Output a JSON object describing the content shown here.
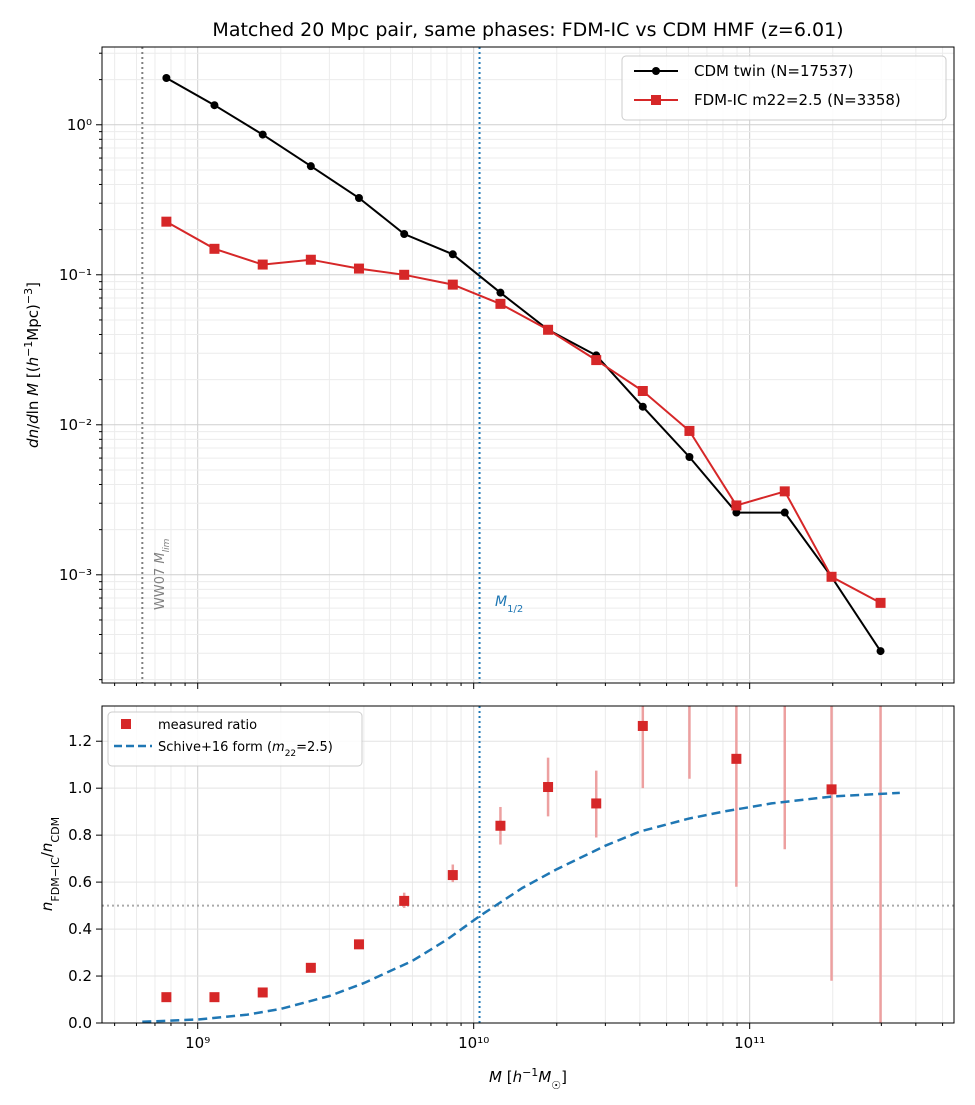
{
  "chart_data": [
    {
      "type": "line",
      "title": "Matched 20 Mpc pair, same phases: FDM-IC vs CDM HMF (z=6.01)",
      "xlabel": "",
      "ylabel": "dn/dln M [(h⁻¹Mpc)⁻³]",
      "xscale": "log",
      "yscale": "log",
      "xlim": [
        450000000.0,
        550000000000.0
      ],
      "ylim": [
        0.00019,
        3.3
      ],
      "grid": true,
      "legend_position": "top-right",
      "yticks": [
        "10⁻³",
        "10⁻²",
        "10⁻¹",
        "10⁰"
      ],
      "x": [
        770000000.0,
        1150000000.0,
        1720000000.0,
        2570000000.0,
        3840000000.0,
        5600000000.0,
        8400000000.0,
        12500000000.0,
        18600000000.0,
        27800000000.0,
        41000000000.0,
        60500000000.0,
        89500000000.0,
        134000000000.0,
        198000000000.0,
        298000000000.0
      ],
      "series": [
        {
          "name": "CDM twin (N=17537)",
          "color": "#000000",
          "marker": "circle",
          "values": [
            2.05,
            1.35,
            0.86,
            0.53,
            0.325,
            0.187,
            0.137,
            0.076,
            0.043,
            0.029,
            0.0132,
            0.0061,
            0.0026,
            0.0026,
            0.00097,
            0.00031
          ]
        },
        {
          "name": "FDM-IC m22=2.5 (N=3358)",
          "color": "#d62728",
          "marker": "square",
          "values": [
            0.226,
            0.149,
            0.117,
            0.126,
            0.11,
            0.1,
            0.086,
            0.064,
            0.043,
            0.027,
            0.0168,
            0.0091,
            0.0029,
            0.0036,
            0.00097,
            0.00065
          ]
        }
      ],
      "annotations": [
        {
          "text": "WW07 M_lim",
          "x": 630000000.0,
          "color": "#808080"
        },
        {
          "text": "M_1/2",
          "x": 10500000000.0,
          "color": "#1f77b4"
        }
      ]
    },
    {
      "type": "scatter",
      "xlabel": "M [h⁻¹M☉]",
      "ylabel": "n_FDM−IC / n_CDM",
      "xscale": "log",
      "yscale": "linear",
      "xlim": [
        450000000.0,
        550000000000.0
      ],
      "ylim": [
        0.0,
        1.35
      ],
      "grid": true,
      "legend_position": "top-left",
      "xticks": [
        "10⁹",
        "10¹⁰",
        "10¹¹"
      ],
      "yticks": [
        "0.0",
        "0.2",
        "0.4",
        "0.6",
        "0.8",
        "1.0",
        "1.2"
      ],
      "series": [
        {
          "name": "measured ratio",
          "color": "#d62728",
          "marker": "square",
          "x": [
            770000000.0,
            1150000000.0,
            1720000000.0,
            2570000000.0,
            3840000000.0,
            5600000000.0,
            8400000000.0,
            12500000000.0,
            18600000000.0,
            27800000000.0,
            41000000000.0,
            60500000000.0,
            89500000000.0,
            134000000000.0,
            198000000000.0,
            298000000000.0
          ],
          "values": [
            0.11,
            0.11,
            0.13,
            0.235,
            0.335,
            0.52,
            0.63,
            0.84,
            1.005,
            0.935,
            1.265,
            null,
            1.125,
            null,
            0.995,
            null
          ],
          "err_low": [
            null,
            null,
            null,
            null,
            null,
            0.49,
            0.6,
            0.76,
            0.88,
            0.79,
            1.0,
            1.04,
            0.58,
            0.74,
            0.18,
            0.0
          ],
          "err_high": [
            null,
            null,
            null,
            null,
            null,
            0.555,
            0.675,
            0.92,
            1.13,
            1.075,
            1.35,
            1.35,
            1.35,
            1.35,
            1.35,
            1.35
          ]
        },
        {
          "name": "Schive+16 form (m₂₂=2.5)",
          "color": "#1f77b4",
          "style": "dashed",
          "x": [
            630000000.0,
            1000000000.0,
            1500000000.0,
            2000000000.0,
            3000000000.0,
            4000000000.0,
            6000000000.0,
            8000000000.0,
            10500000000.0,
            15000000000.0,
            20000000000.0,
            30000000000.0,
            40000000000.0,
            60000000000.0,
            80000000000.0,
            120000000000.0,
            200000000000.0,
            350000000000.0
          ],
          "values": [
            0.005,
            0.015,
            0.035,
            0.06,
            0.115,
            0.17,
            0.265,
            0.355,
            0.455,
            0.575,
            0.655,
            0.755,
            0.815,
            0.87,
            0.9,
            0.935,
            0.965,
            0.98
          ]
        }
      ],
      "reference_lines": [
        {
          "orientation": "horizontal",
          "value": 0.5,
          "color": "#aaaaaa"
        },
        {
          "orientation": "vertical",
          "x": 10500000000.0,
          "color": "#1f77b4"
        }
      ]
    }
  ]
}
